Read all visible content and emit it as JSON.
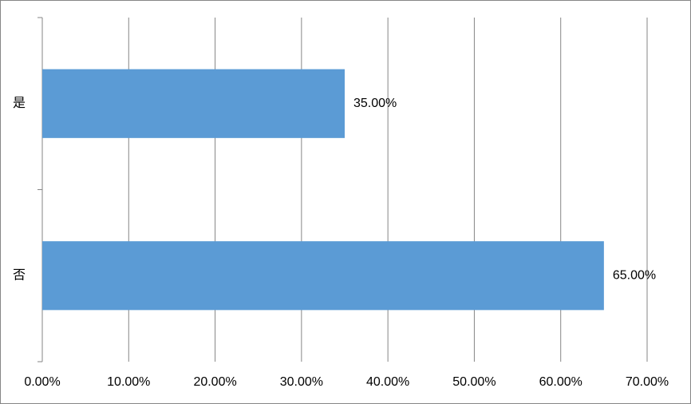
{
  "chart_data": {
    "type": "bar",
    "orientation": "horizontal",
    "categories": [
      "是",
      "否"
    ],
    "values": [
      35,
      65
    ],
    "value_labels": [
      "35.00%",
      "65.00%"
    ],
    "color": "#5b9bd5",
    "xlim": [
      0,
      70
    ],
    "xticks": [
      {
        "value": 0,
        "label": "0.00%"
      },
      {
        "value": 10,
        "label": "10.00%"
      },
      {
        "value": 20,
        "label": "20.00%"
      },
      {
        "value": 30,
        "label": "30.00%"
      },
      {
        "value": 40,
        "label": "40.00%"
      },
      {
        "value": 50,
        "label": "50.00%"
      },
      {
        "value": 60,
        "label": "60.00%"
      },
      {
        "value": 70,
        "label": "70.00%"
      }
    ],
    "grid": true
  }
}
